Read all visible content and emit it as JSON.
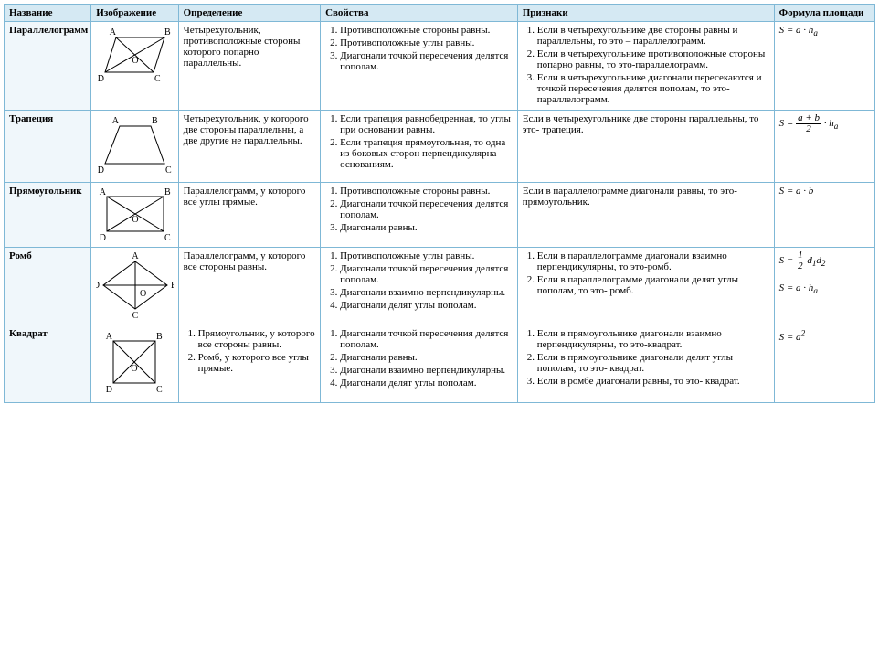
{
  "style": {
    "border_color": "#7fb8d6",
    "header_bg": "#d5e9f3",
    "name_bg": "#f0f7fb",
    "font_family": "Times New Roman",
    "base_font_size": 11,
    "text_color": "#000000",
    "background": "#ffffff",
    "diagram_stroke": "#000000",
    "diagram_stroke_width": 1
  },
  "columns": {
    "name": "Название",
    "image": "Изображение",
    "definition": "Определение",
    "properties": "Свойства",
    "signs": "Признаки",
    "formula": "Формула площади"
  },
  "rows": {
    "parallelogram": {
      "name": "Параллелограмм",
      "diagram": {
        "type": "parallelogram",
        "labels": {
          "tl": "A",
          "tr": "B",
          "br": "C",
          "bl": "D",
          "center": "O"
        }
      },
      "definition": "Четырехугольник, противоположные стороны которого попарно параллельны.",
      "properties": [
        "Противоположные стороны равны.",
        "Противоположные углы равны.",
        "Диагонали точкой пересечения делятся пополам."
      ],
      "signs_list": [
        "Если в четырехугольнике две стороны равны и параллельны, то это – параллелограмм.",
        "Если в четырехугольнике противоположные стороны попарно равны, то это-параллелограмм.",
        "Если в четырехугольнике диагонали пересекаются и точкой пересечения делятся пополам, то это-параллелограмм."
      ],
      "formula_html": "<span class='formula'>S = a · h<sub>a</sub></span>"
    },
    "trapezoid": {
      "name": "Трапеция",
      "diagram": {
        "type": "trapezoid",
        "labels": {
          "tl": "A",
          "tr": "B",
          "br": "C",
          "bl": "D"
        }
      },
      "definition": "Четырехугольник, у которого  две стороны параллельны, а две другие не параллельны.",
      "properties": [
        "Если трапеция равнобедренная, то углы при основании равны.",
        "Если трапеция прямоугольная, то одна из боковых сторон перпендикулярна основаниям."
      ],
      "signs_text": "Если в четырехугольнике две стороны параллельны, то это- трапеция.",
      "formula_html": "<span class='formula'>S = <span class='frac'><span class='n'>a + b</span><span class='d'>2</span></span> · h<sub>a</sub></span>"
    },
    "rectangle": {
      "name": "Прямоугольник",
      "diagram": {
        "type": "rectangle",
        "labels": {
          "tl": "A",
          "tr": "B",
          "br": "C",
          "bl": "D",
          "center": "O"
        }
      },
      "definition": "Параллелограмм, у которого все углы прямые.",
      "properties": [
        "Противоположные стороны равны.",
        "Диагонали точкой пересечения делятся пополам.",
        "Диагонали равны."
      ],
      "signs_text": "Если в параллелограмме диагонали равны, то это- прямоугольник.",
      "formula_html": "<span class='formula'>S = a · b</span>"
    },
    "rhombus": {
      "name": "Ромб",
      "diagram": {
        "type": "rhombus",
        "labels": {
          "top": "A",
          "right": "B",
          "bottom": "C",
          "left": "D",
          "center": "O"
        }
      },
      "definition": "Параллелограмм, у которого все стороны равны.",
      "properties": [
        "Противоположные углы равны.",
        "Диагонали точкой пересечения делятся пополам.",
        "Диагонали взаимно перпендикулярны.",
        "Диагонали делят углы пополам."
      ],
      "signs_list": [
        "Если в параллелограмме диагонали взаимно перпендикулярны, то это-ромб.",
        "Если в параллелограмме диагонали делят углы пополам, то это- ромб."
      ],
      "formula_html": "<span class='formula'>S = <span class='frac'><span class='n'>1</span><span class='d'>2</span></span> d<sub>1</sub>d<sub>2</sub></span><br><br><span class='formula'>S = a · h<sub>a</sub></span>"
    },
    "square": {
      "name": "Квадрат",
      "diagram": {
        "type": "square",
        "labels": {
          "tl": "A",
          "tr": "B",
          "br": "C",
          "bl": "D",
          "center": "O"
        }
      },
      "definition_list": [
        "Прямоугольник, у которого все стороны равны.",
        "Ромб, у которого все углы прямые."
      ],
      "properties": [
        "Диагонали точкой пересечения делятся пополам.",
        "Диагонали равны.",
        "Диагонали взаимно перпендикулярны.",
        "Диагонали делят углы пополам."
      ],
      "signs_list": [
        "Если в прямоугольнике диагонали взаимно перпендикулярны, то это-квадрат.",
        "Если в прямоугольнике диагонали делят углы пополам, то это- квадрат.",
        "Если в ромбе диагонали равны, то это- квадрат."
      ],
      "formula_html": "<span class='formula'>S = a<sup>2</sup></span>"
    }
  }
}
